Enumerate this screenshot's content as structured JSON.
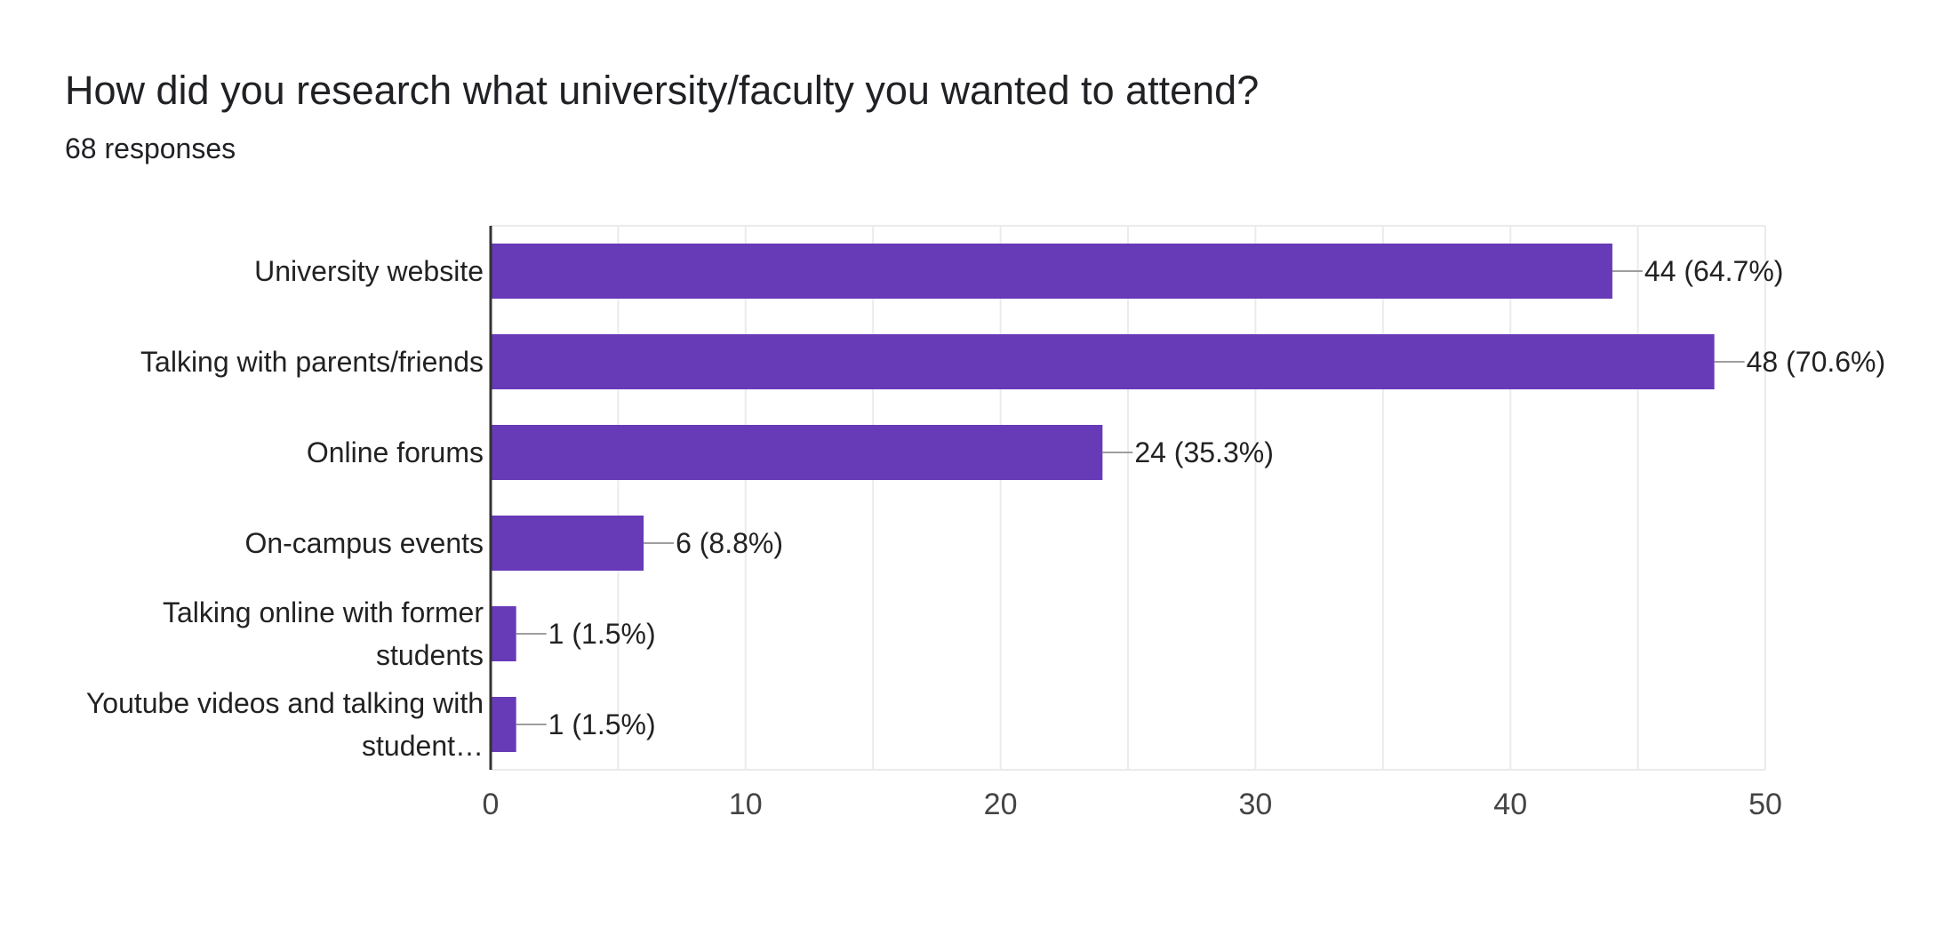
{
  "header": {
    "title": "How did you research what university/faculty you wanted to attend?",
    "subtitle": "68 responses"
  },
  "colors": {
    "bar": "#673ab7",
    "grid": "#ebebeb",
    "axis": "#333333",
    "leader": "#9e9e9e",
    "text": "#222222",
    "tick": "#444444"
  },
  "chart_data": {
    "type": "bar",
    "orientation": "horizontal",
    "title": "How did you research what university/faculty you wanted to attend?",
    "subtitle": "68 responses",
    "categories": [
      [
        "University website"
      ],
      [
        "Talking with parents/friends"
      ],
      [
        "Online forums"
      ],
      [
        "On-campus events"
      ],
      [
        "Talking online with former",
        "students"
      ],
      [
        "Youtube videos and talking with",
        "student…"
      ]
    ],
    "values": [
      44,
      48,
      24,
      6,
      1,
      1
    ],
    "data_labels": [
      "44 (64.7%)",
      "48 (70.6%)",
      "24 (35.3%)",
      "6 (8.8%)",
      "1 (1.5%)",
      "1 (1.5%)"
    ],
    "xlim": [
      0,
      50
    ],
    "x_ticks": [
      0,
      10,
      20,
      30,
      40,
      50
    ],
    "x_tick_labels": [
      "0",
      "10",
      "20",
      "30",
      "40",
      "50"
    ],
    "minor_grid_step": 5,
    "grid": true,
    "legend": "none"
  }
}
